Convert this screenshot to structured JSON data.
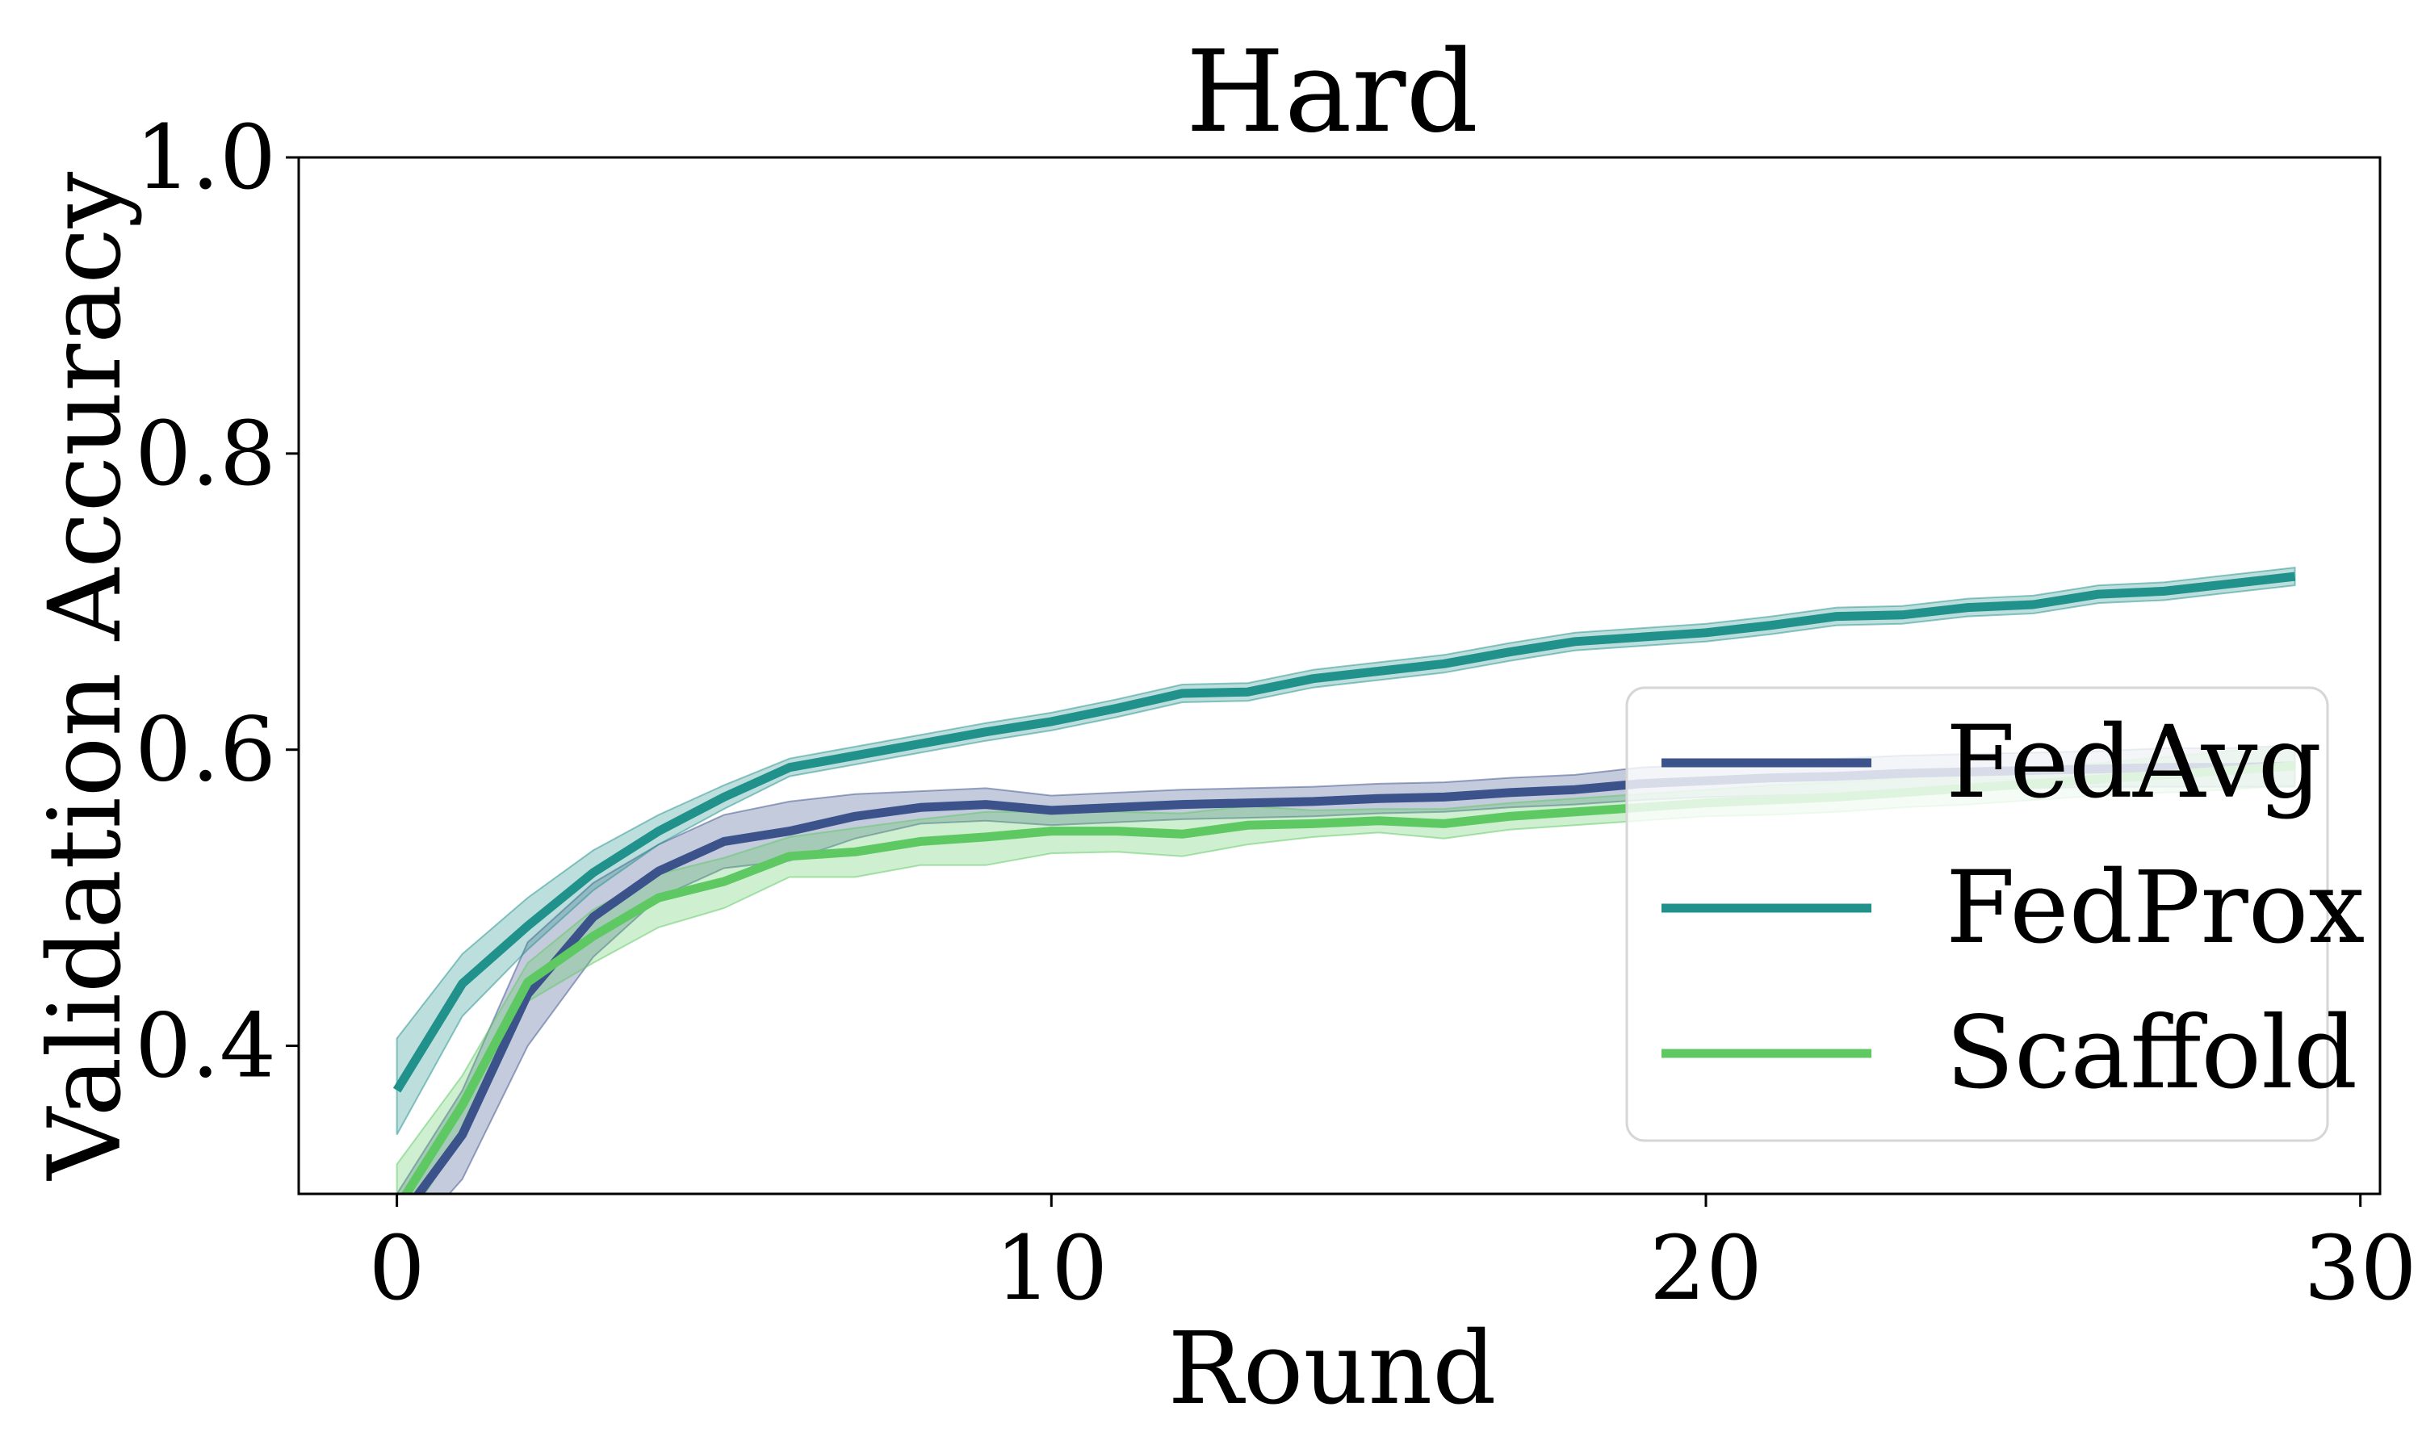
{
  "chart_data": {
    "type": "line",
    "title": "Hard",
    "xlabel": "Round",
    "ylabel": "Validation Accuracy",
    "xlim": [
      -1.5,
      30.3
    ],
    "ylim": [
      0.3,
      1.0
    ],
    "xticks": [
      0,
      10,
      20,
      30
    ],
    "xtick_labels": [
      "0",
      "10",
      "20",
      "30"
    ],
    "yticks": [
      0.4,
      0.6,
      0.8,
      1.0
    ],
    "ytick_labels": [
      "0.4",
      "0.6",
      "0.8",
      "1.0"
    ],
    "grid": false,
    "legend_position": "lower-right",
    "x": [
      0,
      1,
      2,
      3,
      4,
      5,
      6,
      7,
      8,
      9,
      10,
      11,
      12,
      13,
      14,
      15,
      16,
      17,
      18,
      19,
      20,
      21,
      22,
      23,
      24,
      25,
      26,
      27,
      28,
      29
    ],
    "series": [
      {
        "name": "FedAvg",
        "color": "#3b528b",
        "values": [
          0.28,
          0.34,
          0.435,
          0.487,
          0.518,
          0.538,
          0.545,
          0.555,
          0.561,
          0.563,
          0.559,
          0.561,
          0.563,
          0.564,
          0.565,
          0.567,
          0.568,
          0.571,
          0.573,
          0.577,
          0.579,
          0.581,
          0.582,
          0.584,
          0.585,
          0.586,
          0.587,
          0.588,
          0.588,
          0.589
        ],
        "lower": [
          0.26,
          0.31,
          0.4,
          0.46,
          0.5,
          0.52,
          0.525,
          0.54,
          0.55,
          0.552,
          0.549,
          0.551,
          0.553,
          0.554,
          0.555,
          0.557,
          0.558,
          0.561,
          0.563,
          0.566,
          0.568,
          0.569,
          0.57,
          0.572,
          0.573,
          0.574,
          0.575,
          0.575,
          0.575,
          0.575
        ],
        "upper": [
          0.3,
          0.37,
          0.47,
          0.51,
          0.536,
          0.556,
          0.565,
          0.57,
          0.572,
          0.574,
          0.569,
          0.571,
          0.573,
          0.574,
          0.575,
          0.577,
          0.578,
          0.581,
          0.583,
          0.588,
          0.59,
          0.593,
          0.594,
          0.596,
          0.597,
          0.598,
          0.599,
          0.601,
          0.601,
          0.603
        ]
      },
      {
        "name": "FedProx",
        "color": "#21918c",
        "values": [
          0.37,
          0.442,
          0.481,
          0.517,
          0.545,
          0.568,
          0.588,
          0.596,
          0.604,
          0.612,
          0.619,
          0.628,
          0.638,
          0.639,
          0.648,
          0.653,
          0.658,
          0.666,
          0.673,
          0.676,
          0.679,
          0.684,
          0.69,
          0.691,
          0.696,
          0.698,
          0.705,
          0.707,
          0.712,
          0.717
        ],
        "lower": [
          0.34,
          0.42,
          0.465,
          0.505,
          0.536,
          0.56,
          0.582,
          0.59,
          0.598,
          0.606,
          0.613,
          0.622,
          0.632,
          0.633,
          0.642,
          0.647,
          0.652,
          0.66,
          0.667,
          0.67,
          0.673,
          0.678,
          0.684,
          0.685,
          0.69,
          0.692,
          0.699,
          0.701,
          0.706,
          0.711
        ],
        "upper": [
          0.405,
          0.462,
          0.5,
          0.532,
          0.556,
          0.576,
          0.594,
          0.602,
          0.61,
          0.618,
          0.625,
          0.634,
          0.644,
          0.645,
          0.654,
          0.659,
          0.664,
          0.672,
          0.679,
          0.682,
          0.685,
          0.69,
          0.696,
          0.697,
          0.702,
          0.704,
          0.711,
          0.713,
          0.718,
          0.723
        ]
      },
      {
        "name": "Scaffold",
        "color": "#5ec962",
        "values": [
          0.29,
          0.36,
          0.443,
          0.474,
          0.5,
          0.511,
          0.528,
          0.531,
          0.538,
          0.541,
          0.545,
          0.545,
          0.543,
          0.549,
          0.55,
          0.552,
          0.55,
          0.555,
          0.558,
          0.561,
          0.564,
          0.566,
          0.568,
          0.571,
          0.574,
          0.577,
          0.58,
          0.583,
          0.586,
          0.589
        ],
        "lower": [
          0.27,
          0.34,
          0.43,
          0.456,
          0.48,
          0.493,
          0.514,
          0.514,
          0.522,
          0.522,
          0.53,
          0.531,
          0.528,
          0.536,
          0.541,
          0.544,
          0.54,
          0.546,
          0.549,
          0.552,
          0.555,
          0.556,
          0.558,
          0.561,
          0.563,
          0.566,
          0.569,
          0.571,
          0.573,
          0.576
        ],
        "upper": [
          0.32,
          0.38,
          0.456,
          0.492,
          0.516,
          0.527,
          0.541,
          0.547,
          0.553,
          0.558,
          0.558,
          0.558,
          0.557,
          0.562,
          0.559,
          0.56,
          0.56,
          0.564,
          0.567,
          0.57,
          0.573,
          0.576,
          0.578,
          0.581,
          0.585,
          0.588,
          0.591,
          0.595,
          0.599,
          0.602
        ]
      }
    ]
  }
}
